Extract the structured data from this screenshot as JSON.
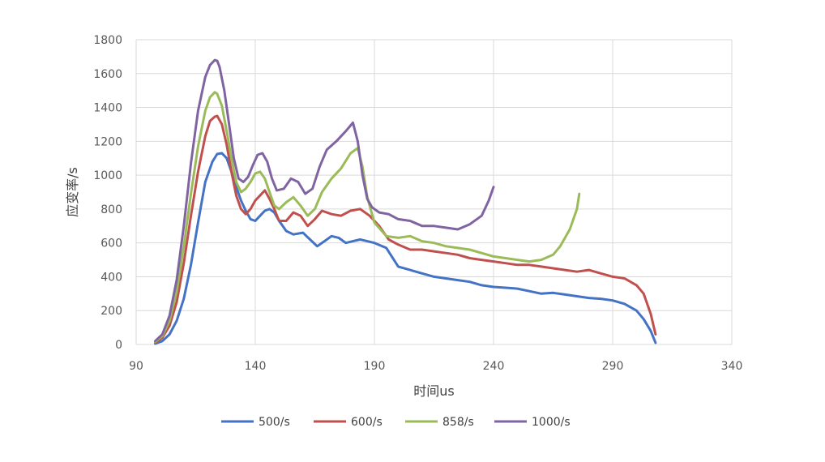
{
  "chart_data": {
    "type": "line",
    "title": "",
    "xlabel": "时间us",
    "ylabel": "应变率/s",
    "xlim": [
      90,
      340
    ],
    "ylim": [
      0,
      1800
    ],
    "xticks": [
      "90",
      "140",
      "190",
      "240",
      "290",
      "340"
    ],
    "yticks": [
      "0",
      "200",
      "400",
      "600",
      "800",
      "1000",
      "1200",
      "1400",
      "1600",
      "1800"
    ],
    "grid": true,
    "legend": "bottom",
    "series": [
      {
        "name": "500/s",
        "color": "#4472C4",
        "x": [
          98,
          101,
          104,
          107,
          110,
          113,
          116,
          119,
          122,
          124,
          126,
          128,
          130,
          132,
          134,
          136,
          138,
          140,
          142,
          144,
          146,
          148,
          150,
          153,
          156,
          160,
          163,
          166,
          169,
          172,
          175,
          178,
          181,
          184,
          187,
          190,
          195,
          200,
          205,
          210,
          215,
          220,
          225,
          230,
          235,
          240,
          245,
          250,
          255,
          260,
          265,
          270,
          275,
          280,
          285,
          290,
          295,
          300,
          303,
          306,
          308
        ],
        "y": [
          5,
          20,
          60,
          140,
          270,
          470,
          720,
          960,
          1080,
          1125,
          1130,
          1100,
          1020,
          930,
          850,
          790,
          740,
          730,
          760,
          790,
          800,
          780,
          730,
          670,
          650,
          660,
          620,
          580,
          610,
          640,
          630,
          600,
          610,
          620,
          610,
          600,
          570,
          460,
          440,
          420,
          400,
          390,
          380,
          370,
          350,
          340,
          335,
          330,
          315,
          300,
          305,
          295,
          285,
          275,
          270,
          260,
          240,
          200,
          150,
          80,
          10
        ]
      },
      {
        "name": "600/s",
        "color": "#C0504D",
        "x": [
          98,
          101,
          104,
          107,
          110,
          113,
          116,
          119,
          121,
          123,
          124,
          126,
          128,
          130,
          132,
          134,
          136,
          138,
          140,
          142,
          144,
          146,
          148,
          150,
          153,
          156,
          159,
          162,
          165,
          168,
          172,
          176,
          180,
          184,
          188,
          192,
          196,
          200,
          205,
          210,
          215,
          220,
          225,
          230,
          235,
          240,
          245,
          250,
          255,
          260,
          265,
          270,
          275,
          280,
          285,
          290,
          295,
          300,
          303,
          306,
          308
        ],
        "y": [
          10,
          40,
          110,
          250,
          480,
          760,
          1020,
          1230,
          1320,
          1345,
          1350,
          1300,
          1180,
          1020,
          880,
          800,
          770,
          800,
          850,
          880,
          910,
          860,
          800,
          730,
          730,
          780,
          760,
          700,
          740,
          790,
          770,
          760,
          790,
          800,
          760,
          700,
          620,
          590,
          560,
          560,
          550,
          540,
          530,
          510,
          500,
          490,
          480,
          470,
          470,
          460,
          450,
          440,
          430,
          440,
          420,
          400,
          390,
          350,
          300,
          180,
          60
        ]
      },
      {
        "name": "858/s",
        "color": "#9BBB59",
        "x": [
          98,
          101,
          104,
          107,
          110,
          113,
          116,
          119,
          121,
          123,
          124,
          126,
          128,
          130,
          132,
          134,
          136,
          138,
          140,
          142,
          144,
          146,
          148,
          150,
          153,
          156,
          159,
          162,
          165,
          168,
          172,
          176,
          180,
          183,
          185,
          187,
          190,
          195,
          200,
          205,
          210,
          215,
          220,
          225,
          230,
          235,
          240,
          245,
          250,
          255,
          260,
          265,
          268,
          272,
          275,
          276
        ],
        "y": [
          15,
          50,
          140,
          310,
          580,
          890,
          1170,
          1380,
          1460,
          1490,
          1480,
          1410,
          1260,
          1100,
          960,
          900,
          920,
          960,
          1010,
          1020,
          980,
          900,
          820,
          800,
          840,
          870,
          820,
          760,
          800,
          900,
          980,
          1040,
          1130,
          1160,
          1050,
          870,
          720,
          640,
          630,
          640,
          610,
          600,
          580,
          570,
          560,
          540,
          520,
          510,
          500,
          490,
          500,
          530,
          580,
          680,
          800,
          890
        ]
      },
      {
        "name": "1000/s",
        "color": "#8064A2",
        "x": [
          98,
          101,
          104,
          107,
          110,
          113,
          116,
          119,
          121,
          123,
          124,
          125,
          127,
          129,
          131,
          133,
          135,
          137,
          139,
          141,
          143,
          145,
          147,
          149,
          152,
          155,
          158,
          161,
          164,
          167,
          170,
          174,
          178,
          181,
          183,
          185,
          187,
          189,
          192,
          196,
          200,
          205,
          210,
          215,
          220,
          225,
          230,
          235,
          238,
          240
        ],
        "y": [
          20,
          60,
          170,
          380,
          700,
          1070,
          1380,
          1580,
          1650,
          1680,
          1675,
          1640,
          1500,
          1300,
          1100,
          980,
          960,
          990,
          1060,
          1120,
          1130,
          1080,
          980,
          910,
          920,
          980,
          960,
          890,
          920,
          1050,
          1150,
          1200,
          1260,
          1310,
          1200,
          1000,
          860,
          810,
          780,
          770,
          740,
          730,
          700,
          700,
          690,
          680,
          710,
          760,
          850,
          930
        ]
      }
    ]
  }
}
